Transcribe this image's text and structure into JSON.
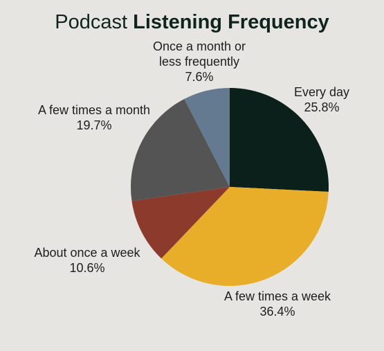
{
  "chart_data": {
    "type": "pie",
    "title": {
      "regular": "Podcast",
      "bold": "Listening Frequency"
    },
    "slices": [
      {
        "label": [
          "Every day"
        ],
        "value": 25.8,
        "value_text": "25.8%",
        "color": "#0c201b"
      },
      {
        "label": [
          "A few times a week"
        ],
        "value": 36.4,
        "value_text": "36.4%",
        "color": "#e8ad29"
      },
      {
        "label": [
          "About once a week"
        ],
        "value": 10.6,
        "value_text": "10.6%",
        "color": "#8b3a2b"
      },
      {
        "label": [
          "A few times a month"
        ],
        "value": 19.7,
        "value_text": "19.7%",
        "color": "#545454"
      },
      {
        "label": [
          "Once a month or",
          "less frequently"
        ],
        "value": 7.6,
        "value_text": "7.6%",
        "color": "#647a91"
      }
    ],
    "start_angle_deg": 0,
    "direction": "clockwise",
    "legend": "none"
  }
}
